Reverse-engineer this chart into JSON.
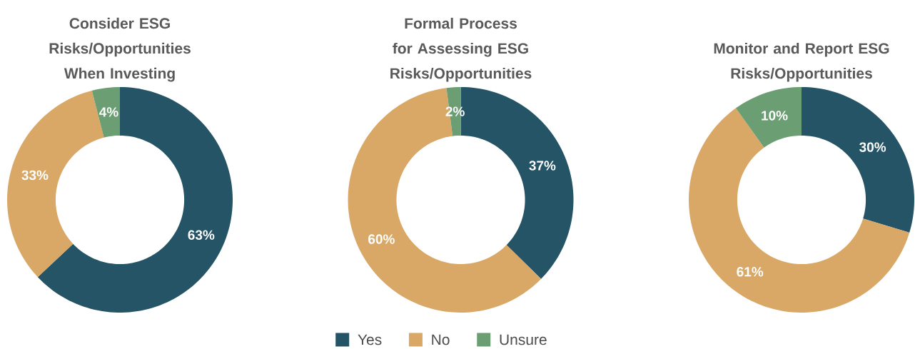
{
  "chart_data": [
    {
      "type": "donut",
      "title": "Consider ESG Risks/Opportunities When Investing",
      "categories": [
        null,
        null,
        null
      ],
      "values": [
        63,
        33,
        4
      ],
      "value_labels": [
        "63%",
        "33%",
        "4%"
      ],
      "colors": [
        "#245466",
        "#d9a866",
        "#6b9e72"
      ]
    },
    {
      "type": "donut",
      "title": "Formal Process for Assessing ESG Risks/Opportunities",
      "categories": [
        "Yes",
        "No",
        "Unsure"
      ],
      "values": [
        37,
        60,
        2
      ],
      "value_labels": [
        "37%",
        "60%",
        "2%"
      ],
      "colors": [
        "#245466",
        "#d9a866",
        "#6b9e72"
      ],
      "legend": "bottom"
    },
    {
      "type": "donut",
      "title": "Monitor and Report ESG Risks/Opportunities",
      "categories": [
        null,
        null,
        null
      ],
      "values": [
        30,
        61,
        10
      ],
      "value_labels": [
        "30%",
        "61%",
        "10%"
      ],
      "colors": [
        "#245466",
        "#d9a866",
        "#6b9e72"
      ]
    }
  ]
}
